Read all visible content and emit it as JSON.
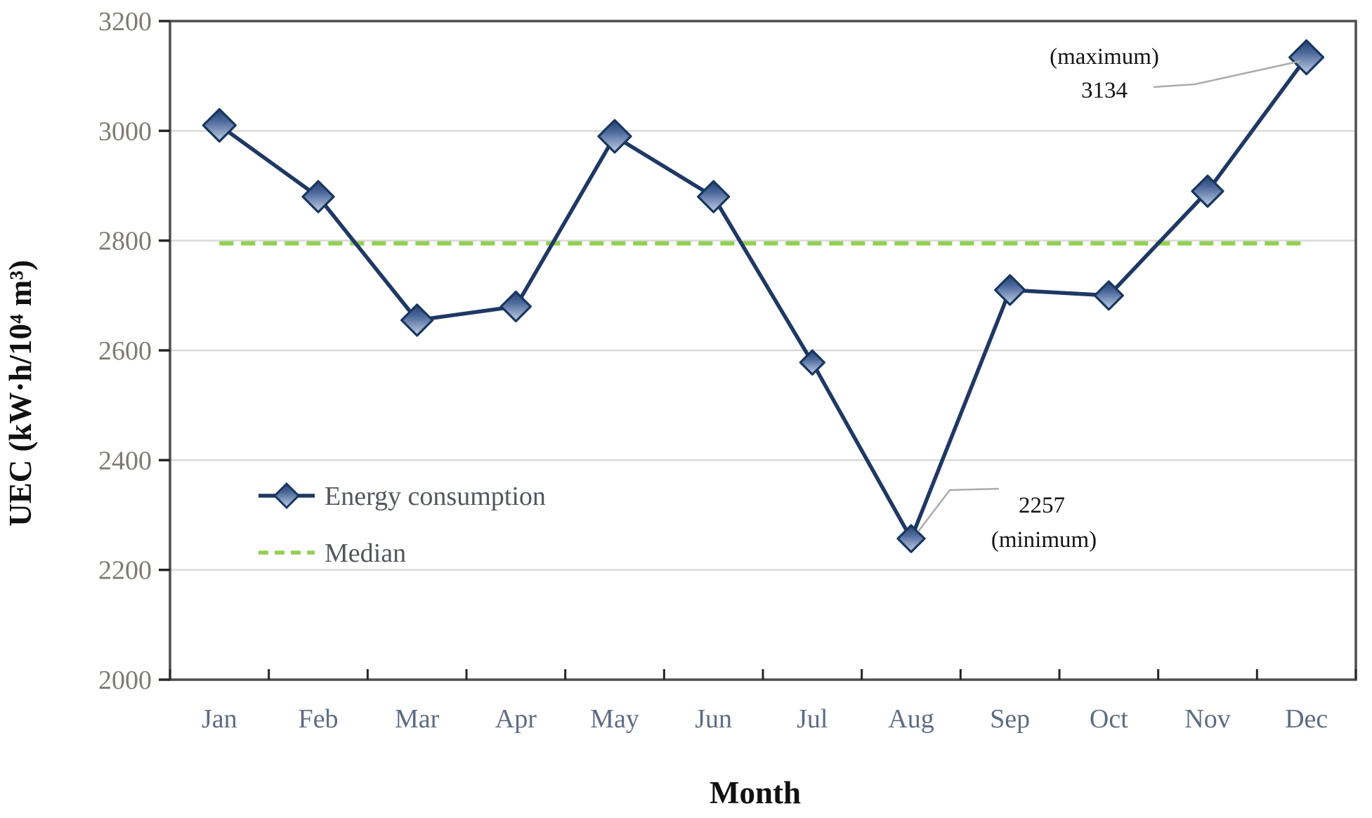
{
  "chart_data": {
    "type": "line",
    "title": "",
    "categories": [
      "Jan",
      "Feb",
      "Mar",
      "Apr",
      "May",
      "Jun",
      "Jul",
      "Aug",
      "Sep",
      "Oct",
      "Nov",
      "Dec"
    ],
    "series": [
      {
        "name": "Energy consumption",
        "values": [
          3010,
          2880,
          2655,
          2680,
          2990,
          2880,
          2578,
          2257,
          2710,
          2700,
          2890,
          3134
        ],
        "color": "#1F3864",
        "marker": "diamond"
      },
      {
        "name": "Median",
        "value": 2795,
        "style": "dashed",
        "color": "#92D050"
      }
    ],
    "xlabel": "Month",
    "ylabel": "UEC (kW·h/10⁴ m³)",
    "ylim": [
      2000,
      3200
    ],
    "ytick_step": 200,
    "ytick_labels": [
      "2000",
      "2200",
      "2400",
      "2600",
      "2800",
      "3000",
      "3200"
    ],
    "grid": "horizontal-light-gray",
    "legend_position": "inside-lower-left",
    "marker_sizes": [
      23,
      22,
      22,
      21,
      23,
      22,
      17,
      19,
      21,
      20,
      22,
      24
    ],
    "annotations": [
      {
        "target": "Dec",
        "value": 3134,
        "label_lines": [
          "(maximum)",
          "3134"
        ]
      },
      {
        "target": "Aug",
        "value": 2257,
        "label_lines": [
          "2257",
          "(minimum)"
        ]
      }
    ]
  },
  "colors": {
    "series_line": "#1F3864",
    "marker_border": "#17375E",
    "marker_gradient_top": "#24406f",
    "marker_gradient_mid": "#4f6b9e",
    "marker_gradient_bottom": "#c2cfe4",
    "median_line": "#92D050",
    "gridline": "#D9D9D9",
    "frame": "#4d4d4d",
    "tick_mark": "#262626",
    "leader_line": "#ababab",
    "ytick_text": "#7d7b74",
    "xtick_text": "#5e6c83"
  }
}
